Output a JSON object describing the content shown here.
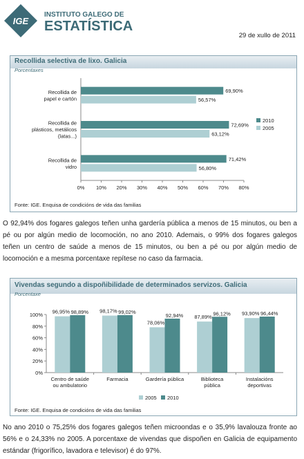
{
  "header": {
    "logo_abbr": "IGE",
    "logo_line1": "INSTITUTO GALEGO DE",
    "logo_line2": "ESTATÍSTICA",
    "date": "29 de xullo de 2011"
  },
  "colors": {
    "series2010": "#4d8a8c",
    "series2005": "#aecfd3",
    "title": "#3d6b77"
  },
  "chart1": {
    "title": "Recollida selectiva de lixo. Galicia",
    "subtitle": "Porcentaxes",
    "source": "Fonte: IGE. Enquisa de condicións de vida das familias",
    "chart_data": {
      "type": "bar",
      "orientation": "horizontal",
      "categories": [
        [
          "Recollida de",
          "papel e cartón"
        ],
        [
          "Recollida de",
          "plásticos, metálicos",
          "(latas...)"
        ],
        [
          "Recollida de",
          "vidro"
        ]
      ],
      "series": [
        {
          "name": "2010",
          "values": [
            69.9,
            72.69,
            71.42
          ],
          "labels": [
            "69,90%",
            "72,69%",
            "71,42%"
          ]
        },
        {
          "name": "2005",
          "values": [
            56.57,
            63.12,
            56.8
          ],
          "labels": [
            "56,57%",
            "63,12%",
            "56,80%"
          ]
        }
      ],
      "xlim": [
        0,
        80
      ],
      "ticks": [
        "0%",
        "10%",
        "20%",
        "30%",
        "40%",
        "50%",
        "60%",
        "70%",
        "80%"
      ],
      "grid": false,
      "legend": "right"
    }
  },
  "paragraph1": "O 92,94% dos fogares galegos teñen unha gardería pública a menos de 15 minutos, ou ben a pé ou por algún medio de locomoción, no ano 2010. Ademais, o 99% dos fogares galegos teñen un centro de saúde a menos de 15 minutos, ou ben a pé ou por algún medio de locomoción e a mesma porcentaxe repítese no caso da farmacia.",
  "chart2": {
    "title": "Vivendas segundo a dispoñibilidade de determinados servizos. Galicia",
    "subtitle": "Porcentaxe",
    "source": "Fonte: IGE. Enquisa de condicións de vida das familias",
    "chart_data": {
      "type": "bar",
      "orientation": "vertical",
      "categories": [
        [
          "Centro de saúde",
          "ou ambulatorio"
        ],
        [
          "Farmacia"
        ],
        [
          "Gardería pública"
        ],
        [
          "Biblioteca",
          "pública"
        ],
        [
          "Instalacións",
          "deportivas"
        ]
      ],
      "series": [
        {
          "name": "2005",
          "values": [
            96.95,
            98.17,
            78.06,
            87.89,
            93.9
          ],
          "labels": [
            "96,95%",
            "98,17%",
            "78,06%",
            "87,89%",
            "93,90%"
          ]
        },
        {
          "name": "2010",
          "values": [
            98.89,
            99.02,
            92.94,
            96.12,
            96.44
          ],
          "labels": [
            "98,89%",
            "99,02%",
            "92,94%",
            "96,12%",
            "96,44%"
          ]
        }
      ],
      "ylim": [
        0,
        100
      ],
      "ticks": [
        "0%",
        "20%",
        "40%",
        "60%",
        "80%",
        "100%"
      ],
      "grid": false,
      "legend": "bottom"
    }
  },
  "paragraph2": "No ano 2010 o 75,25% dos fogares galegos teñen microondas e o 35,9% lavalouza fronte ao 56% e o 24,33% no 2005. A porcentaxe de vivendas que dispoñen en Galicia de equipamento estándar (frigorífico, lavadora e televisor) é do 97%."
}
